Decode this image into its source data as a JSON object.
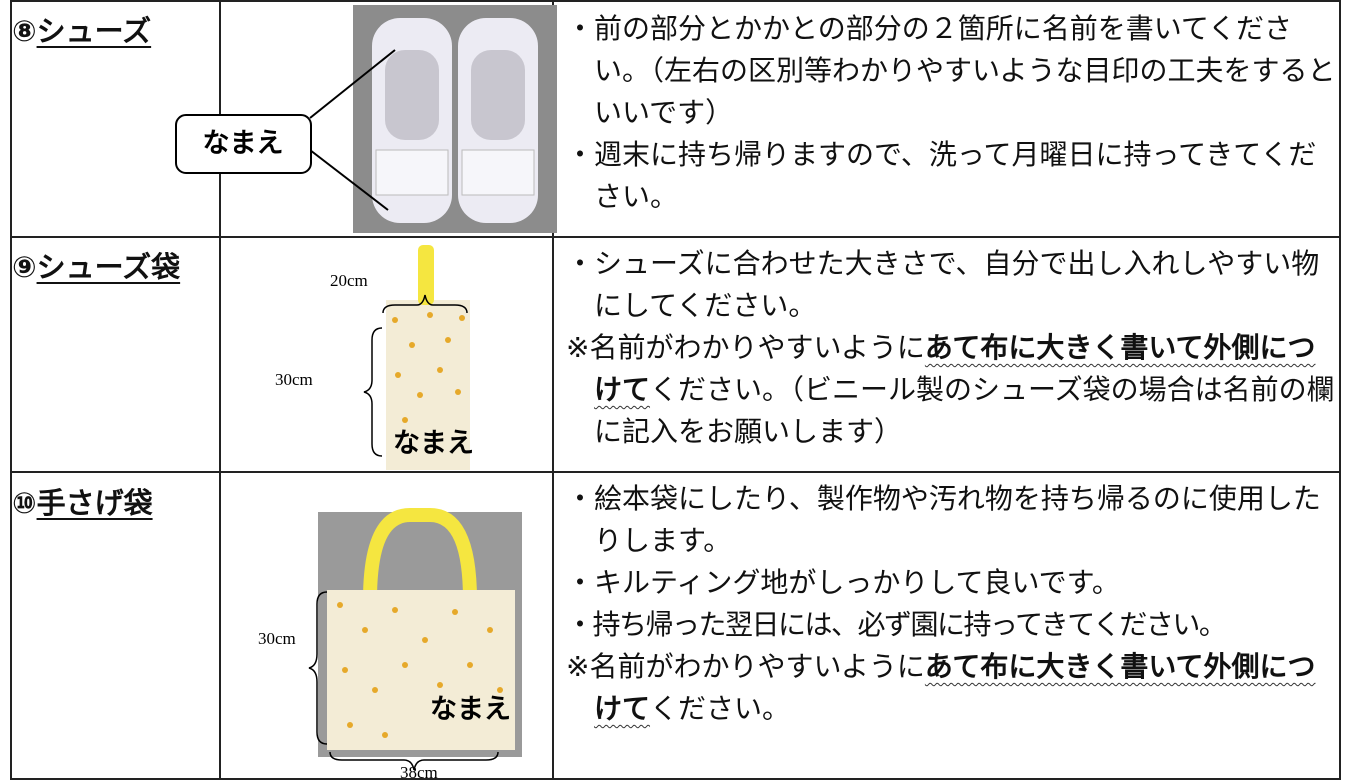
{
  "table": {
    "rows": [
      {
        "number": "⑧",
        "item": "シューズ",
        "image_labels": [
          "なまえ"
        ],
        "notes": [
          [
            "・前の部分とかかとの部分の２箇所に名前を書いてください。（左右の区別等わかりやすいような目印の工夫をするといいです）"
          ],
          [
            "・週末に持ち帰りますので、洗って月曜日に持ってきてください。"
          ]
        ]
      },
      {
        "number": "⑨",
        "item": "シューズ袋",
        "image_labels": [
          "20cm",
          "30cm",
          "なまえ"
        ],
        "notes": [
          [
            "・シューズに合わせた大きさで、自分で出し入れしやすい物にしてください。"
          ],
          [
            "※名前がわかりやすいように",
            "あて布に大きく書いて外側につけて",
            "ください。（ビニール製のシューズ袋の場合は名前の欄に記入をお願いします）"
          ]
        ]
      },
      {
        "number": "⑩",
        "item": "手さげ袋",
        "image_labels": [
          "30cm",
          "38cm",
          "なまえ"
        ],
        "notes": [
          [
            "・絵本袋にしたり、製作物や汚れ物を持ち帰るのに使用したりします。"
          ],
          [
            "・キルティング地がしっかりして良いです。"
          ],
          [
            "・持ち帰った翌日には、必ず園に持ってきてください。"
          ],
          [
            "※名前がわかりやすいように",
            "あて布に大きく書いて外側につけて",
            "ください。"
          ]
        ]
      }
    ]
  }
}
